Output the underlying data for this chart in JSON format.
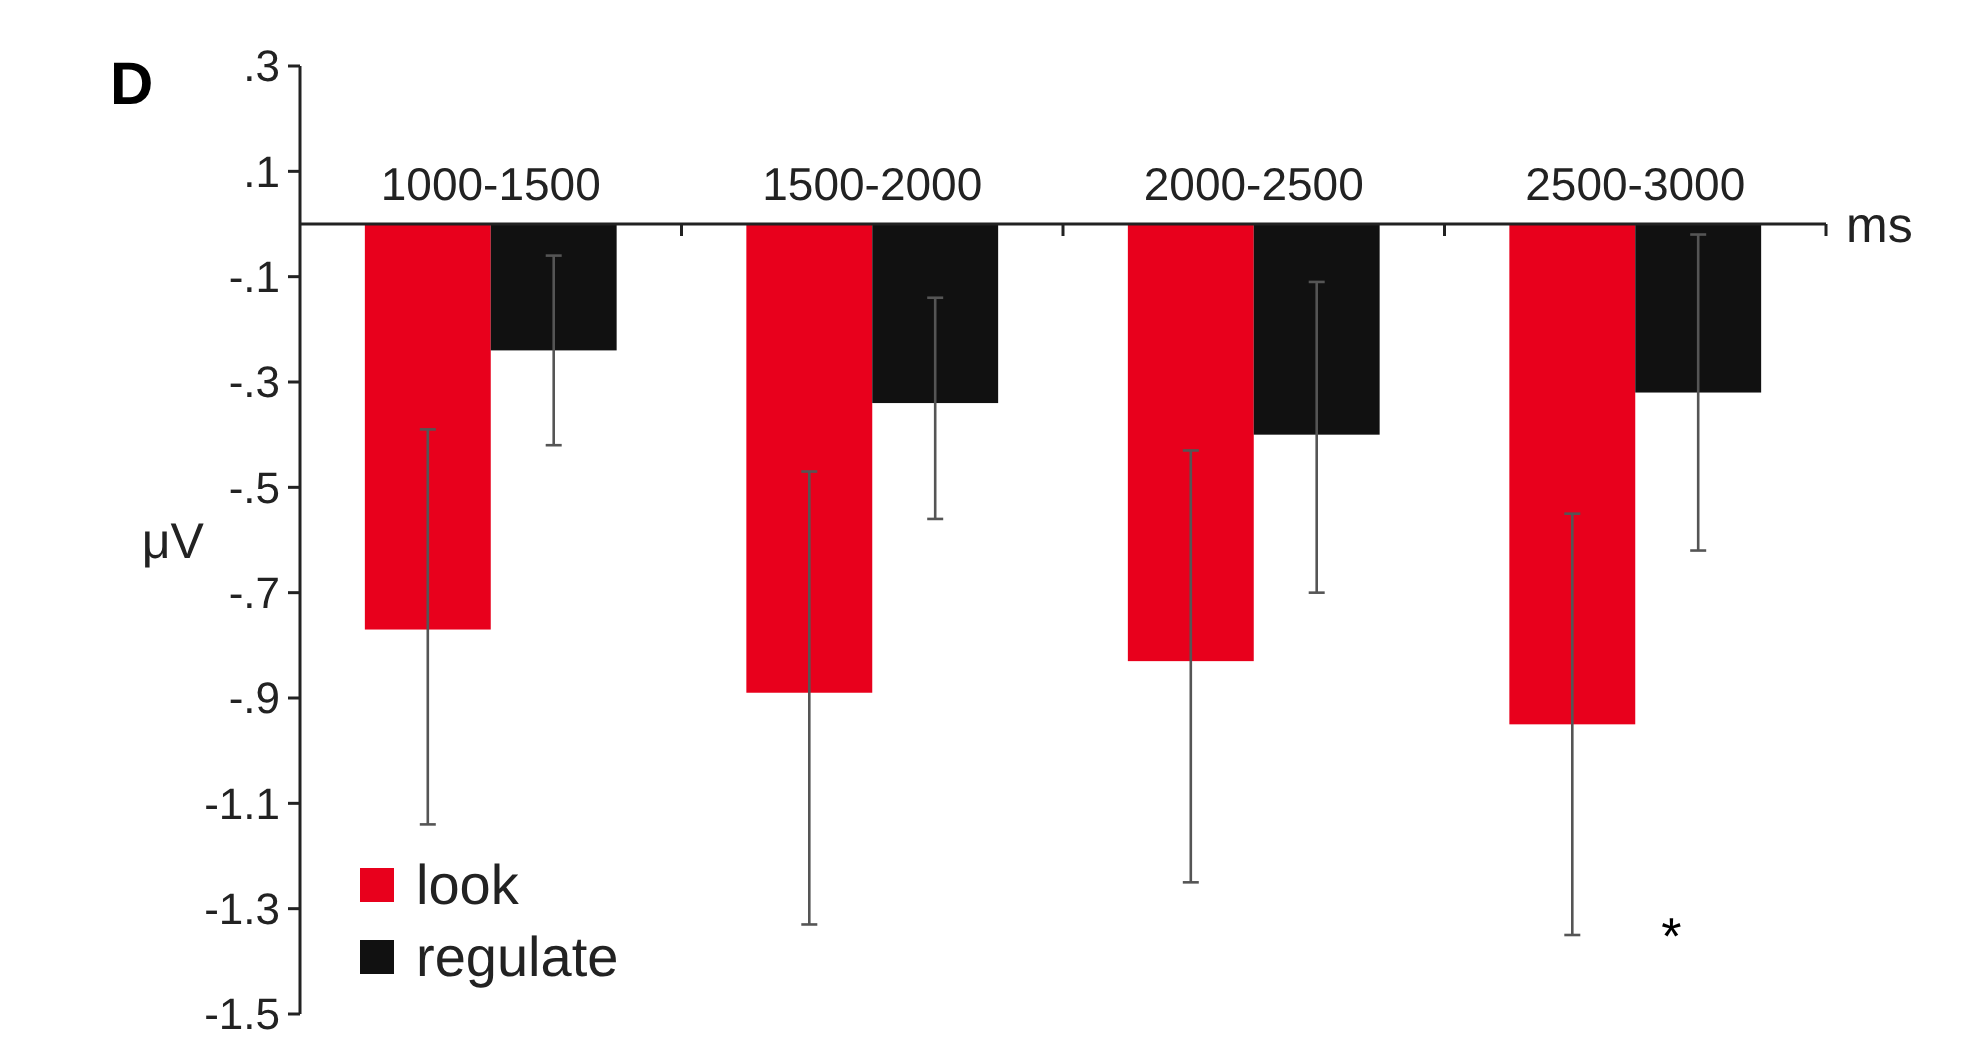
{
  "chart_data": {
    "type": "bar",
    "title": "D",
    "xlabel": "ms",
    "ylabel": "μV",
    "categories": [
      "1000-1500",
      "1500-2000",
      "2000-2500",
      "2500-3000"
    ],
    "series": [
      {
        "name": "look",
        "color": "#e8001c",
        "values": [
          -0.77,
          -0.89,
          -0.83,
          -0.95
        ],
        "errors": [
          [
            -1.14,
            -0.39
          ],
          [
            -1.33,
            -0.47
          ],
          [
            -1.25,
            -0.43
          ],
          [
            -1.35,
            -0.55
          ]
        ]
      },
      {
        "name": "regulate",
        "color": "#111111",
        "values": [
          -0.24,
          -0.34,
          -0.4,
          -0.32
        ],
        "errors": [
          [
            -0.42,
            -0.06
          ],
          [
            -0.56,
            -0.14
          ],
          [
            -0.7,
            -0.11
          ],
          [
            -0.62,
            -0.02
          ]
        ]
      }
    ],
    "ylim": [
      -1.5,
      0.3
    ],
    "yticks": [
      {
        "value": 0.3,
        "label": ".3"
      },
      {
        "value": 0.1,
        "label": ".1"
      },
      {
        "value": -0.1,
        "label": "-.1"
      },
      {
        "value": -0.3,
        "label": "-.3"
      },
      {
        "value": -0.5,
        "label": "-.5"
      },
      {
        "value": -0.7,
        "label": "-.7"
      },
      {
        "value": -0.9,
        "label": "-.9"
      },
      {
        "value": -1.1,
        "label": "-1.1"
      },
      {
        "value": -1.3,
        "label": "-1.3"
      },
      {
        "value": -1.5,
        "label": "-1.5"
      }
    ],
    "annotations": [
      "*"
    ],
    "legend": "bottom left"
  }
}
